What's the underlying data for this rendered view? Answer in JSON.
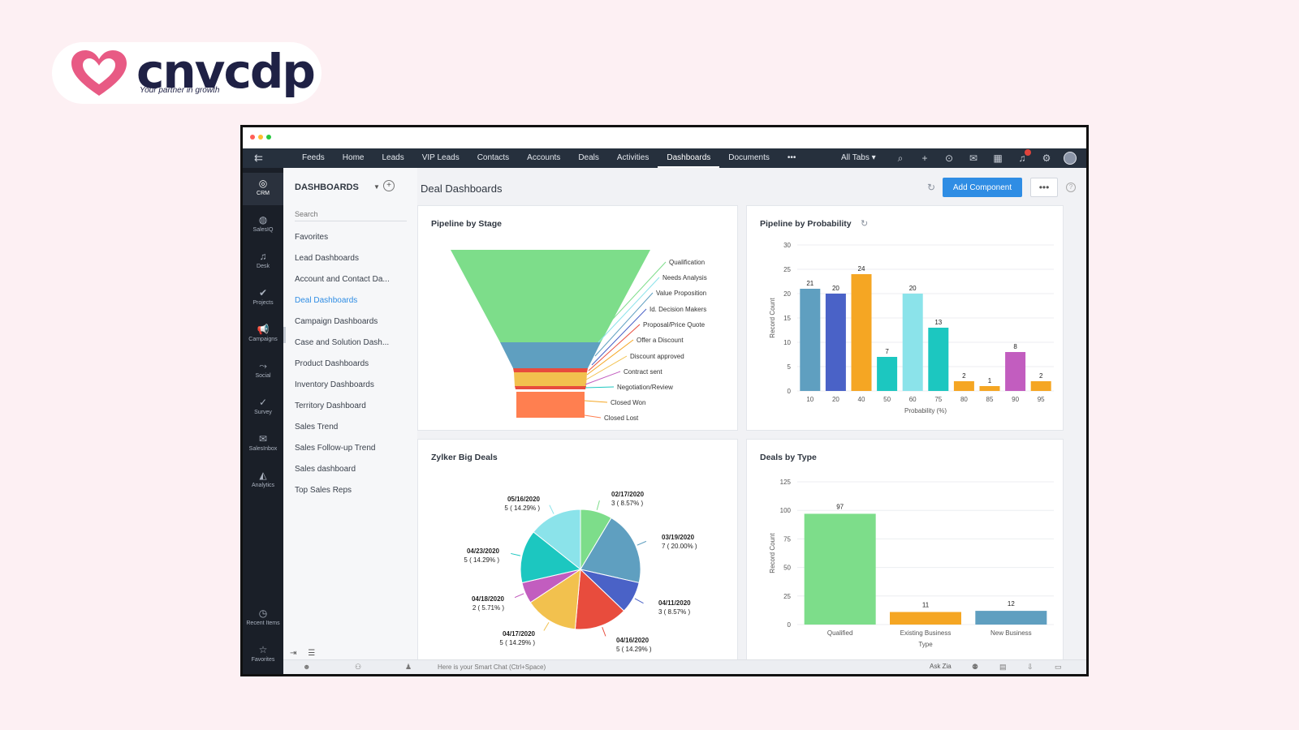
{
  "brand": {
    "name": "cnvcdp",
    "tagline": "Your partner in growth",
    "color": "#1f2145",
    "heart_color": "#e85a84"
  },
  "nav": {
    "tabs": [
      "Feeds",
      "Home",
      "Leads",
      "VIP Leads",
      "Contacts",
      "Accounts",
      "Deals",
      "Activities",
      "Dashboards",
      "Documents",
      "•••"
    ],
    "active_tab": "Dashboards",
    "all_tabs": "All Tabs ▾",
    "icons": [
      "search-icon",
      "plus-icon",
      "gamepad-icon",
      "mail-icon",
      "calendar-icon",
      "bell-icon",
      "gear-icon",
      "avatar"
    ]
  },
  "apps": [
    {
      "label": "CRM",
      "glyph": "◎",
      "icon": "crm-icon"
    },
    {
      "label": "SalesIQ",
      "glyph": "◍",
      "icon": "salesiq-icon"
    },
    {
      "label": "Desk",
      "glyph": "♫",
      "icon": "desk-icon"
    },
    {
      "label": "Projects",
      "glyph": "✔",
      "icon": "projects-icon"
    },
    {
      "label": "Campaigns",
      "glyph": "📢",
      "icon": "campaigns-icon"
    },
    {
      "label": "Social",
      "glyph": "⤳",
      "icon": "social-icon"
    },
    {
      "label": "Survey",
      "glyph": "✓",
      "icon": "survey-icon"
    },
    {
      "label": "SalesInbox",
      "glyph": "✉",
      "icon": "salesinbox-icon"
    },
    {
      "label": "Analytics",
      "glyph": "◭",
      "icon": "analytics-icon"
    },
    {
      "label": "Recent Items",
      "glyph": "◷",
      "icon": "recent-items-icon"
    },
    {
      "label": "Favorites",
      "glyph": "☆",
      "icon": "favorites-icon"
    }
  ],
  "sidebar": {
    "title": "DASHBOARDS",
    "search_placeholder": "Search",
    "items": [
      "Favorites",
      "Lead Dashboards",
      "Account and Contact Da...",
      "Deal Dashboards",
      "Campaign Dashboards",
      "Case and Solution Dash...",
      "Product Dashboards",
      "Inventory Dashboards",
      "Territory Dashboard",
      "Sales Trend",
      "Sales Follow-up Trend",
      "Sales dashboard",
      "Top Sales Reps"
    ],
    "active_item": "Deal Dashboards"
  },
  "page": {
    "title": "Deal Dashboards",
    "add_component": "Add Component",
    "more": "•••"
  },
  "bottom": {
    "chat_placeholder": "Here is your Smart Chat (Ctrl+Space)",
    "ask_zia": "Ask Zia"
  },
  "chart_data": [
    {
      "title": "Pipeline by Stage",
      "type": "funnel",
      "stages": [
        "Qualification",
        "Needs Analysis",
        "Value Proposition",
        "Id. Decision Makers",
        "Proposal/Price Quote",
        "Offer a Discount",
        "Discount approved",
        "Contract sent",
        "Negotiation/Review",
        "Closed Won",
        "Closed Lost"
      ],
      "colors": [
        "#7ddd8a",
        "#5f9fc0",
        "#e84c3d",
        "#f2c14e",
        "#ff7f50"
      ]
    },
    {
      "title": "Pipeline by Probability",
      "type": "bar",
      "xlabel": "Probability (%)",
      "ylabel": "Record Count",
      "ylim": [
        0,
        30
      ],
      "yticks": [
        0,
        5,
        10,
        15,
        20,
        25,
        30
      ],
      "categories": [
        "10",
        "20",
        "40",
        "50",
        "60",
        "75",
        "80",
        "85",
        "90",
        "95"
      ],
      "bars": [
        {
          "group": "10",
          "value": 21,
          "color": "#5f9fc0"
        },
        {
          "group": "20",
          "value": 20,
          "color": "#4a62c7"
        },
        {
          "group": "40",
          "value": 24,
          "color": "#f5a623"
        },
        {
          "group": "50",
          "value": 7,
          "color": "#1cc7c0"
        },
        {
          "group": "60",
          "value": 20,
          "color": "#8be3ea"
        },
        {
          "group": "75",
          "value": 13,
          "color": "#1cc7c0"
        },
        {
          "group": "80",
          "value": 2,
          "color": "#f5a623"
        },
        {
          "group": "85",
          "value": 1,
          "color": "#f5a623"
        },
        {
          "group": "90",
          "value": 8,
          "color": "#c25dbf"
        },
        {
          "group": "95",
          "value": 2,
          "color": "#f5a623"
        }
      ]
    },
    {
      "title": "Zylker Big Deals",
      "type": "pie",
      "slices": [
        {
          "label": "02/17/2020",
          "detail": "3 ( 8.57% )",
          "value": 8.57,
          "color": "#7ddd8a"
        },
        {
          "label": "03/19/2020",
          "detail": "7 ( 20.00% )",
          "value": 20.0,
          "color": "#5f9fc0"
        },
        {
          "label": "04/11/2020",
          "detail": "3 ( 8.57% )",
          "value": 8.57,
          "color": "#4a62c7"
        },
        {
          "label": "04/16/2020",
          "detail": "5 ( 14.29% )",
          "value": 14.29,
          "color": "#e84c3d"
        },
        {
          "label": "04/17/2020",
          "detail": "5 ( 14.29% )",
          "value": 14.29,
          "color": "#f2c14e"
        },
        {
          "label": "04/18/2020",
          "detail": "2 ( 5.71% )",
          "value": 5.71,
          "color": "#c25dbf"
        },
        {
          "label": "04/23/2020",
          "detail": "5 ( 14.29% )",
          "value": 14.29,
          "color": "#1cc7c0"
        },
        {
          "label": "05/16/2020",
          "detail": "5 ( 14.29% )",
          "value": 14.29,
          "color": "#8be3ea"
        }
      ]
    },
    {
      "title": "Deals by Type",
      "type": "bar",
      "xlabel": "Type",
      "ylabel": "Record Count",
      "ylim": [
        0,
        125
      ],
      "yticks": [
        0,
        25,
        50,
        75,
        100,
        125
      ],
      "categories": [
        "Qualified",
        "Existing Business",
        "New Business"
      ],
      "values": [
        97,
        11,
        12
      ],
      "colors": [
        "#7ddd8a",
        "#f5a623",
        "#5f9fc0"
      ]
    }
  ]
}
